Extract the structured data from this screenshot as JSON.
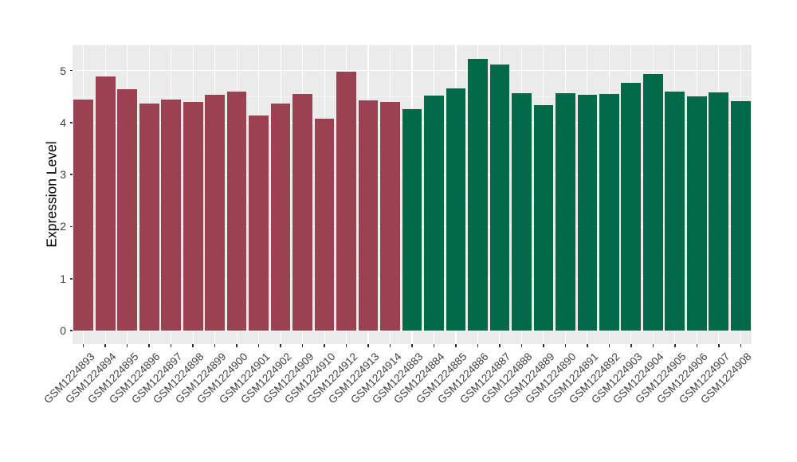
{
  "chart_data": {
    "type": "bar",
    "title": "",
    "xlabel": "",
    "ylabel": "Expression Level",
    "yticks": [
      0,
      1,
      2,
      3,
      4,
      5
    ],
    "minor_yticks": [
      0.5,
      1.5,
      2.5,
      3.5,
      4.5,
      5.5
    ],
    "ylim": [
      -0.26,
      5.5
    ],
    "grid": true,
    "legend_position": "none",
    "panel_background_color": "#EBEBEB",
    "gridline_color": "#FFFFFF",
    "group_colors": {
      "maroon": "#9A4251",
      "green": "#016948"
    },
    "bars": [
      {
        "label": "GSM1224893",
        "value": 4.45,
        "group": "maroon"
      },
      {
        "label": "GSM1224894",
        "value": 4.88,
        "group": "maroon"
      },
      {
        "label": "GSM1224895",
        "value": 4.64,
        "group": "maroon"
      },
      {
        "label": "GSM1224896",
        "value": 4.36,
        "group": "maroon"
      },
      {
        "label": "GSM1224897",
        "value": 4.45,
        "group": "maroon"
      },
      {
        "label": "GSM1224898",
        "value": 4.4,
        "group": "maroon"
      },
      {
        "label": "GSM1224899",
        "value": 4.53,
        "group": "maroon"
      },
      {
        "label": "GSM1224900",
        "value": 4.6,
        "group": "maroon"
      },
      {
        "label": "GSM1224901",
        "value": 4.14,
        "group": "maroon"
      },
      {
        "label": "GSM1224902",
        "value": 4.37,
        "group": "maroon"
      },
      {
        "label": "GSM1224909",
        "value": 4.55,
        "group": "maroon"
      },
      {
        "label": "GSM1224910",
        "value": 4.08,
        "group": "maroon"
      },
      {
        "label": "GSM1224912",
        "value": 4.98,
        "group": "maroon"
      },
      {
        "label": "GSM1224913",
        "value": 4.43,
        "group": "maroon"
      },
      {
        "label": "GSM1224914",
        "value": 4.39,
        "group": "maroon"
      },
      {
        "label": "GSM1224883",
        "value": 4.26,
        "group": "green"
      },
      {
        "label": "GSM1224884",
        "value": 4.52,
        "group": "green"
      },
      {
        "label": "GSM1224885",
        "value": 4.66,
        "group": "green"
      },
      {
        "label": "GSM1224886",
        "value": 5.23,
        "group": "green"
      },
      {
        "label": "GSM1224887",
        "value": 5.12,
        "group": "green"
      },
      {
        "label": "GSM1224888",
        "value": 4.56,
        "group": "green"
      },
      {
        "label": "GSM1224889",
        "value": 4.34,
        "group": "green"
      },
      {
        "label": "GSM1224890",
        "value": 4.57,
        "group": "green"
      },
      {
        "label": "GSM1224891",
        "value": 4.54,
        "group": "green"
      },
      {
        "label": "GSM1224892",
        "value": 4.55,
        "group": "green"
      },
      {
        "label": "GSM1224903",
        "value": 4.77,
        "group": "green"
      },
      {
        "label": "GSM1224904",
        "value": 4.93,
        "group": "green"
      },
      {
        "label": "GSM1224905",
        "value": 4.6,
        "group": "green"
      },
      {
        "label": "GSM1224906",
        "value": 4.51,
        "group": "green"
      },
      {
        "label": "GSM1224907",
        "value": 4.58,
        "group": "green"
      },
      {
        "label": "GSM1224908",
        "value": 4.41,
        "group": "green"
      }
    ]
  }
}
